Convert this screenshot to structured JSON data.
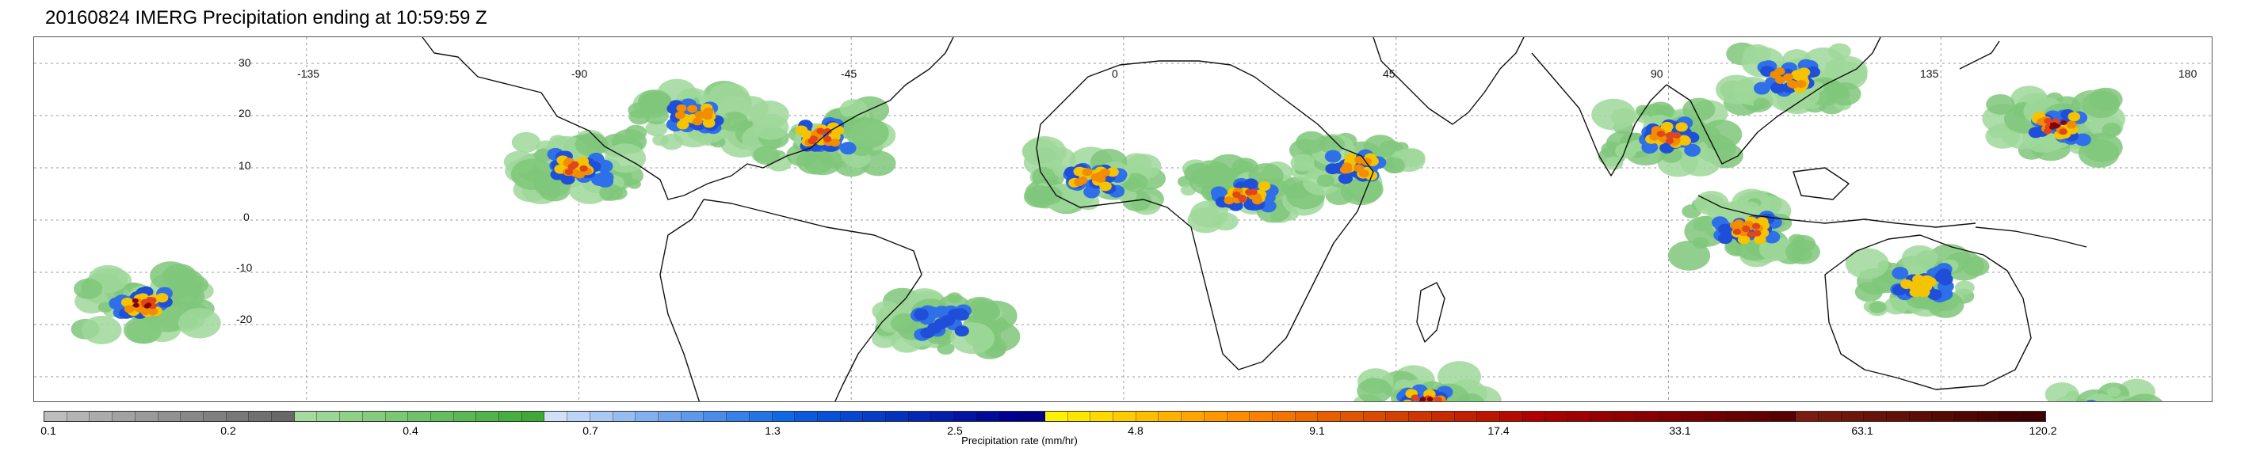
{
  "title": "20160824 IMERG Precipitation ending at 10:59:59 Z",
  "map": {
    "longitude_labels": [
      "-135",
      "-90",
      "-45",
      "0",
      "45",
      "90",
      "135",
      "180"
    ],
    "latitude_labels": [
      "30",
      "20",
      "10",
      "0",
      "-10",
      "-20"
    ],
    "grid": "dashed",
    "precip_areas": [
      {
        "name": "west-pacific-typhoon",
        "lon": 154,
        "lat": 18,
        "level": 8
      },
      {
        "name": "china-coast",
        "lon": 110,
        "lat": 27,
        "level": 5
      },
      {
        "name": "bay-of-bengal",
        "lon": 90,
        "lat": 16,
        "level": 6
      },
      {
        "name": "maritime-continent",
        "lon": 103,
        "lat": -2,
        "level": 6
      },
      {
        "name": "south-pacific-convergence",
        "lon": -162,
        "lat": -16,
        "level": 7
      },
      {
        "name": "central-america",
        "lon": -90,
        "lat": 10,
        "level": 6
      },
      {
        "name": "caribbean-storm",
        "lon": -71,
        "lat": 20,
        "level": 5
      },
      {
        "name": "atlantic-tropical-cyclone",
        "lon": -50,
        "lat": 16,
        "level": 6
      },
      {
        "name": "west-africa",
        "lon": -5,
        "lat": 8,
        "level": 5
      },
      {
        "name": "central-africa",
        "lon": 20,
        "lat": 5,
        "level": 6
      },
      {
        "name": "ethiopia",
        "lon": 38,
        "lat": 10,
        "level": 5
      },
      {
        "name": "madagascar-front",
        "lon": 50,
        "lat": -35,
        "level": 7
      },
      {
        "name": "south-atlantic-front",
        "lon": -30,
        "lat": -20,
        "level": 3
      },
      {
        "name": "australia-north",
        "lon": 132,
        "lat": -12,
        "level": 4
      },
      {
        "name": "tasman-front",
        "lon": 160,
        "lat": -38,
        "level": 5
      }
    ]
  },
  "colorbar": {
    "label": "Precipitation rate (mm/hr)",
    "ticks": [
      "0.1",
      "0.2",
      "0.4",
      "0.7",
      "1.3",
      "2.5",
      "4.8",
      "9.1",
      "17.4",
      "33.1",
      "63.1",
      "120.2"
    ],
    "colors": [
      "#bdbdbd",
      "#b4b4b4",
      "#ababab",
      "#a2a2a2",
      "#9a9a9a",
      "#919191",
      "#888888",
      "#808080",
      "#787878",
      "#707070",
      "#686868",
      "#a6dba0",
      "#9bd695",
      "#90d18a",
      "#85cc7f",
      "#7ac774",
      "#6fc269",
      "#65bd5f",
      "#5bb855",
      "#51b34b",
      "#47ae41",
      "#3da937",
      "#cfe0f7",
      "#bcd4f5",
      "#a9c8f3",
      "#96bcf1",
      "#83b0ef",
      "#70a4ed",
      "#5d98eb",
      "#4a8ce9",
      "#3780e7",
      "#2474e5",
      "#1168e3",
      "#0a5ae0",
      "#0850d8",
      "#0746cf",
      "#063cc6",
      "#0532bd",
      "#0428b4",
      "#031eab",
      "#0214a2",
      "#010a99",
      "#000090",
      "#000087",
      "#fff200",
      "#ffe600",
      "#ffd900",
      "#ffcc00",
      "#ffbf00",
      "#ffb200",
      "#ffa500",
      "#ff9800",
      "#ff8b00",
      "#f98000",
      "#f27500",
      "#ec6a00",
      "#e66000",
      "#e05500",
      "#da4a00",
      "#d44000",
      "#ce3500",
      "#c82a00",
      "#c22000",
      "#bc1500",
      "#b60a00",
      "#b00000",
      "#a80000",
      "#a00000",
      "#980000",
      "#900000",
      "#880000",
      "#800000",
      "#780000",
      "#700000",
      "#680000",
      "#600000",
      "#580000",
      "#7a1c10",
      "#74190e",
      "#6e160c",
      "#68130a",
      "#621008",
      "#5c0d06",
      "#560a04",
      "#500702",
      "#4a0401",
      "#440100",
      "#3e0000"
    ]
  },
  "colors": {
    "light": "#9fd89a",
    "mid": "#2f6fe8",
    "strong": "#f4c400",
    "heavy": "#e0451c",
    "extreme": "#8b0000"
  }
}
